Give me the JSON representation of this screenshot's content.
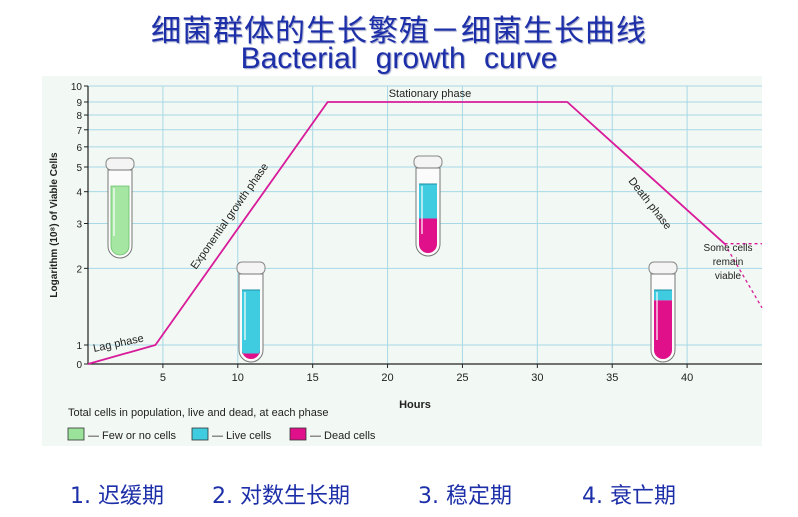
{
  "title_cn": "细菌群体的生长繁殖－细菌生长曲线",
  "title_en": "Bacterial  growth  curve",
  "chart_data": {
    "type": "line",
    "xlabel": "Hours",
    "ylabel": "Logarithm (10⁸) of Viable Cells",
    "x_ticks": [
      5,
      10,
      15,
      20,
      25,
      30,
      35,
      40
    ],
    "y_ticks": [
      0,
      1,
      2,
      3,
      4,
      5,
      6,
      7,
      8,
      9,
      10
    ],
    "xlim": [
      0,
      45
    ],
    "ylim": [
      0,
      10
    ],
    "grid": true,
    "series": [
      {
        "x": [
          0,
          4.5,
          16,
          32,
          42.5
        ],
        "y": [
          0,
          1,
          9,
          9,
          2.5
        ],
        "color": "#d81b9a"
      }
    ],
    "dashed_extensions": [
      {
        "x": [
          42.5,
          45
        ],
        "y": [
          2.5,
          2.5
        ]
      },
      {
        "x": [
          42.5,
          45
        ],
        "y": [
          2.5,
          1.4
        ]
      }
    ],
    "annotations": {
      "lag": "Lag phase",
      "exp": "Exponential growth phase",
      "stat": "Stationary phase",
      "death": "Death phase",
      "remain": [
        "Some cells",
        "remain",
        "viable"
      ]
    },
    "legend": {
      "title": "Total cells in population, live and dead, at each phase",
      "items": [
        {
          "label": "— Few or no cells",
          "color": "#9be29b"
        },
        {
          "label": "— Live cells",
          "color": "#3fcbe0"
        },
        {
          "label": "— Dead cells",
          "color": "#e0108a"
        }
      ]
    },
    "tubes": [
      {
        "phase": "lag",
        "live": 1.0,
        "dead": 0.0,
        "color": "green"
      },
      {
        "phase": "exponential",
        "live": 0.92,
        "dead": 0.08,
        "color": "cyan"
      },
      {
        "phase": "stationary",
        "live": 0.5,
        "dead": 0.5,
        "color": "mixed"
      },
      {
        "phase": "death",
        "live": 0.15,
        "dead": 0.85,
        "color": "mixed"
      }
    ]
  },
  "phases": [
    "1. 迟缓期",
    "2. 对数生长期",
    "3. 稳定期",
    "4.  衰亡期"
  ]
}
